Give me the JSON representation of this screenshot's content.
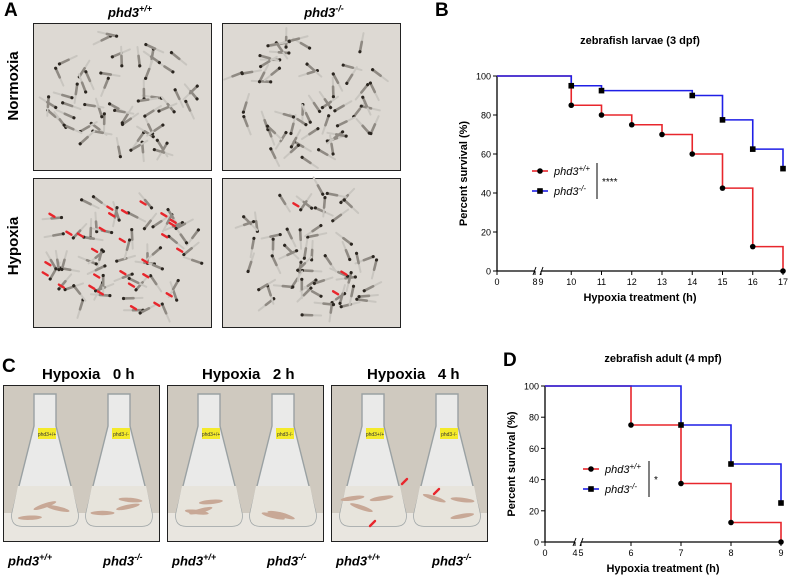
{
  "panels": {
    "A": {
      "letter": "A",
      "col_left": "phd3+/+",
      "col_right": "phd3-/-",
      "row_top": "Normoxia",
      "row_bottom": "Hypoxia"
    },
    "C": {
      "letter": "C",
      "captions": [
        "Hypoxia   0 h",
        "Hypoxia   2 h",
        "Hypoxia   4 h"
      ],
      "genotypes": [
        "phd3+/+",
        "phd3-/-",
        "phd3+/+",
        "phd3-/-",
        "phd3+/+",
        "phd3-/-"
      ],
      "flask_labels": [
        "phd3+/+",
        "phd3-/-"
      ]
    }
  },
  "colors": {
    "wt": "#e8262c",
    "ko": "#1f1fe6",
    "photo_bg": "#ddd9d3",
    "flask_water": "#e7e4dc"
  },
  "chart_data": [
    {
      "letter": "B",
      "type": "line",
      "step": true,
      "title": "zebrafish larvae (3 dpf)",
      "xlabel": "Hypoxia treatment (h)",
      "ylabel": "Percent survival (%)",
      "x_ticks": [
        "0",
        "8",
        "9",
        "10",
        "11",
        "12",
        "13",
        "14",
        "15",
        "16",
        "17"
      ],
      "y_ticks": [
        "0",
        "20",
        "40",
        "60",
        "80",
        "100"
      ],
      "xlim": [
        0,
        17
      ],
      "axis_break": [
        8,
        9
      ],
      "ylim": [
        0,
        100
      ],
      "legend_position": "left",
      "significance": "****",
      "series": [
        {
          "name": "phd3+/+",
          "color": "#e8262c",
          "marker": "circle",
          "x": [
            10,
            11,
            12,
            13,
            14,
            15,
            16,
            17
          ],
          "y": [
            85,
            80,
            75,
            70,
            60,
            42.5,
            12.5,
            0
          ]
        },
        {
          "name": "phd3-/-",
          "color": "#1f1fe6",
          "marker": "square",
          "x": [
            10,
            11,
            14,
            15,
            16,
            17
          ],
          "y": [
            95,
            92.5,
            90,
            77.5,
            62.5,
            52.5
          ]
        }
      ]
    },
    {
      "letter": "D",
      "type": "line",
      "step": true,
      "title": "zebrafish adult (4 mpf)",
      "xlabel": "Hypoxia treatment (h)",
      "ylabel": "Percent survival (%)",
      "x_ticks": [
        "0",
        "4",
        "5",
        "6",
        "7",
        "8",
        "9"
      ],
      "y_ticks": [
        "0",
        "20",
        "40",
        "60",
        "80",
        "100"
      ],
      "xlim": [
        0,
        9
      ],
      "axis_break": [
        4,
        5
      ],
      "ylim": [
        0,
        100
      ],
      "legend_position": "left",
      "significance": "*",
      "series": [
        {
          "name": "phd3+/+",
          "color": "#e8262c",
          "marker": "circle",
          "x": [
            6,
            7,
            8,
            9
          ],
          "y": [
            75,
            37.5,
            12.5,
            0
          ]
        },
        {
          "name": "phd3-/-",
          "color": "#1f1fe6",
          "marker": "square",
          "x": [
            7,
            8,
            9
          ],
          "y": [
            75,
            50,
            25
          ]
        }
      ]
    }
  ]
}
